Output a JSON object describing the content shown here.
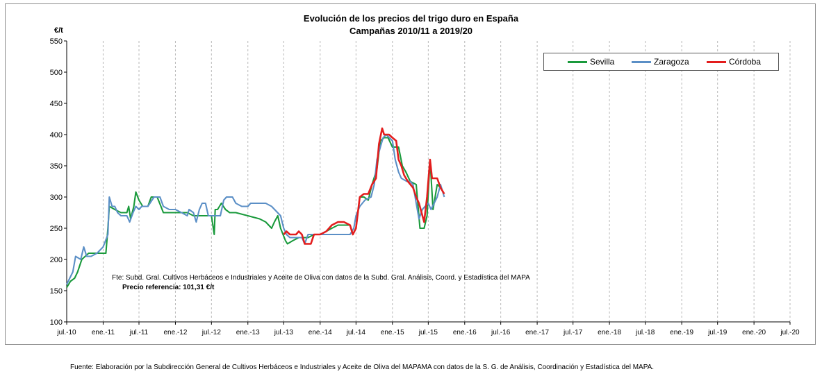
{
  "chart_data": {
    "type": "line",
    "title": "Evolución de los precios del trigo duro en España",
    "subtitle": "Campañas 2010/11 a 2019/20",
    "ylabel": "€/t",
    "ylim": [
      100,
      550
    ],
    "yticks": [
      100,
      150,
      200,
      250,
      300,
      350,
      400,
      450,
      500,
      550
    ],
    "x_tick_labels": [
      "jul.-10",
      "ene.-11",
      "jul.-11",
      "ene.-12",
      "jul.-12",
      "ene.-13",
      "jul.-13",
      "ene.-14",
      "jul.-14",
      "ene.-15",
      "jul.-15",
      "ene.-16",
      "jul.-16",
      "ene.-17",
      "jul.-17",
      "ene.-18",
      "jul.-18",
      "ene.-19",
      "jul.-19",
      "ene.-20",
      "jul.-20"
    ],
    "xlim": [
      "2010-07-01",
      "2020-07-01"
    ],
    "grid": "vertical dashed",
    "legend": "top-right",
    "series": [
      {
        "name": "Sevilla",
        "color": "#1a9a3c",
        "points": [
          [
            "2010-07-01",
            155
          ],
          [
            "2010-07-20",
            165
          ],
          [
            "2010-08-10",
            170
          ],
          [
            "2010-08-25",
            180
          ],
          [
            "2010-09-15",
            200
          ],
          [
            "2010-10-20",
            210
          ],
          [
            "2010-12-01",
            210
          ],
          [
            "2011-01-15",
            210
          ],
          [
            "2011-01-25",
            250
          ],
          [
            "2011-02-01",
            285
          ],
          [
            "2011-03-01",
            280
          ],
          [
            "2011-04-01",
            275
          ],
          [
            "2011-05-01",
            275
          ],
          [
            "2011-05-10",
            285
          ],
          [
            "2011-05-20",
            265
          ],
          [
            "2011-06-05",
            285
          ],
          [
            "2011-06-15",
            308
          ],
          [
            "2011-07-01",
            295
          ],
          [
            "2011-07-20",
            285
          ],
          [
            "2011-08-15",
            285
          ],
          [
            "2011-09-01",
            300
          ],
          [
            "2011-10-01",
            300
          ],
          [
            "2011-10-20",
            285
          ],
          [
            "2011-11-01",
            275
          ],
          [
            "2011-12-01",
            275
          ],
          [
            "2012-01-01",
            275
          ],
          [
            "2012-03-01",
            275
          ],
          [
            "2012-04-01",
            270
          ],
          [
            "2012-06-01",
            270
          ],
          [
            "2012-07-01",
            270
          ],
          [
            "2012-07-15",
            240
          ],
          [
            "2012-07-20",
            280
          ],
          [
            "2012-08-01",
            280
          ],
          [
            "2012-08-20",
            290
          ],
          [
            "2012-09-10",
            280
          ],
          [
            "2012-10-01",
            275
          ],
          [
            "2012-11-01",
            275
          ],
          [
            "2013-01-01",
            270
          ],
          [
            "2013-03-01",
            265
          ],
          [
            "2013-04-01",
            260
          ],
          [
            "2013-05-01",
            250
          ],
          [
            "2013-05-15",
            260
          ],
          [
            "2013-06-01",
            270
          ],
          [
            "2013-06-15",
            250
          ],
          [
            "2013-07-10",
            230
          ],
          [
            "2013-07-20",
            225
          ],
          [
            "2013-08-15",
            230
          ],
          [
            "2013-09-15",
            235
          ],
          [
            "2013-11-01",
            235
          ],
          [
            "2013-12-01",
            240
          ],
          [
            "2014-01-01",
            240
          ],
          [
            "2014-02-01",
            245
          ],
          [
            "2014-03-01",
            250
          ],
          [
            "2014-04-01",
            255
          ],
          [
            "2014-06-01",
            255
          ],
          [
            "2014-06-15",
            240
          ],
          [
            "2014-07-01",
            250
          ],
          [
            "2014-07-20",
            300
          ],
          [
            "2014-08-10",
            300
          ],
          [
            "2014-09-01",
            295
          ],
          [
            "2014-09-20",
            320
          ],
          [
            "2014-10-15",
            345
          ],
          [
            "2014-11-01",
            390
          ],
          [
            "2014-11-20",
            395
          ],
          [
            "2014-12-10",
            395
          ],
          [
            "2015-01-01",
            380
          ],
          [
            "2015-02-01",
            380
          ],
          [
            "2015-02-20",
            350
          ],
          [
            "2015-03-10",
            340
          ],
          [
            "2015-04-01",
            325
          ],
          [
            "2015-05-01",
            320
          ],
          [
            "2015-05-20",
            250
          ],
          [
            "2015-06-10",
            250
          ],
          [
            "2015-06-25",
            270
          ],
          [
            "2015-07-10",
            360
          ],
          [
            "2015-07-25",
            280
          ],
          [
            "2015-08-15",
            320
          ],
          [
            "2015-09-01",
            315
          ]
        ]
      },
      {
        "name": "Zaragoza",
        "color": "#5b8fc6",
        "points": [
          [
            "2010-07-01",
            160
          ],
          [
            "2010-08-01",
            180
          ],
          [
            "2010-08-15",
            205
          ],
          [
            "2010-09-10",
            200
          ],
          [
            "2010-09-25",
            220
          ],
          [
            "2010-10-10",
            205
          ],
          [
            "2010-11-01",
            205
          ],
          [
            "2010-12-01",
            210
          ],
          [
            "2011-01-01",
            220
          ],
          [
            "2011-01-25",
            240
          ],
          [
            "2011-02-01",
            300
          ],
          [
            "2011-02-15",
            285
          ],
          [
            "2011-03-01",
            285
          ],
          [
            "2011-03-15",
            275
          ],
          [
            "2011-04-01",
            270
          ],
          [
            "2011-05-01",
            270
          ],
          [
            "2011-05-15",
            260
          ],
          [
            "2011-06-01",
            275
          ],
          [
            "2011-06-15",
            285
          ],
          [
            "2011-07-01",
            280
          ],
          [
            "2011-07-15",
            285
          ],
          [
            "2011-08-15",
            285
          ],
          [
            "2011-09-15",
            300
          ],
          [
            "2011-10-15",
            300
          ],
          [
            "2011-11-01",
            285
          ],
          [
            "2011-12-01",
            280
          ],
          [
            "2012-01-01",
            280
          ],
          [
            "2012-02-01",
            275
          ],
          [
            "2012-03-01",
            270
          ],
          [
            "2012-03-10",
            280
          ],
          [
            "2012-04-01",
            275
          ],
          [
            "2012-04-15",
            260
          ],
          [
            "2012-05-01",
            280
          ],
          [
            "2012-05-15",
            290
          ],
          [
            "2012-06-01",
            290
          ],
          [
            "2012-06-15",
            270
          ],
          [
            "2012-07-01",
            270
          ],
          [
            "2012-08-01",
            270
          ],
          [
            "2012-08-15",
            270
          ],
          [
            "2012-09-01",
            295
          ],
          [
            "2012-09-15",
            300
          ],
          [
            "2012-10-15",
            300
          ],
          [
            "2012-11-01",
            290
          ],
          [
            "2012-12-01",
            285
          ],
          [
            "2013-01-01",
            285
          ],
          [
            "2013-01-15",
            290
          ],
          [
            "2013-04-01",
            290
          ],
          [
            "2013-05-01",
            285
          ],
          [
            "2013-06-15",
            270
          ],
          [
            "2013-07-01",
            250
          ],
          [
            "2013-07-15",
            240
          ],
          [
            "2013-08-01",
            235
          ],
          [
            "2013-09-01",
            235
          ],
          [
            "2013-10-01",
            235
          ],
          [
            "2013-10-15",
            225
          ],
          [
            "2013-11-01",
            240
          ],
          [
            "2013-12-01",
            240
          ],
          [
            "2014-01-01",
            240
          ],
          [
            "2014-06-01",
            240
          ],
          [
            "2014-06-20",
            250
          ],
          [
            "2014-07-01",
            270
          ],
          [
            "2014-07-20",
            285
          ],
          [
            "2014-08-15",
            295
          ],
          [
            "2014-09-15",
            300
          ],
          [
            "2014-10-01",
            320
          ],
          [
            "2014-10-15",
            360
          ],
          [
            "2014-11-01",
            380
          ],
          [
            "2014-11-15",
            395
          ],
          [
            "2014-12-01",
            400
          ],
          [
            "2015-01-01",
            390
          ],
          [
            "2015-01-15",
            360
          ],
          [
            "2015-02-01",
            340
          ],
          [
            "2015-02-15",
            330
          ],
          [
            "2015-03-15",
            325
          ],
          [
            "2015-04-01",
            325
          ],
          [
            "2015-04-15",
            320
          ],
          [
            "2015-05-01",
            290
          ],
          [
            "2015-05-15",
            265
          ],
          [
            "2015-06-01",
            280
          ],
          [
            "2015-06-15",
            285
          ],
          [
            "2015-07-01",
            290
          ],
          [
            "2015-07-15",
            280
          ],
          [
            "2015-08-15",
            300
          ],
          [
            "2015-09-01",
            320
          ],
          [
            "2015-09-20",
            300
          ]
        ]
      },
      {
        "name": "Córdoba",
        "color": "#e31d1d",
        "points": [
          [
            "2013-07-01",
            240
          ],
          [
            "2013-07-15",
            245
          ],
          [
            "2013-08-01",
            240
          ],
          [
            "2013-09-01",
            240
          ],
          [
            "2013-09-15",
            245
          ],
          [
            "2013-10-01",
            240
          ],
          [
            "2013-10-15",
            225
          ],
          [
            "2013-11-15",
            225
          ],
          [
            "2013-12-01",
            240
          ],
          [
            "2014-01-01",
            240
          ],
          [
            "2014-02-01",
            245
          ],
          [
            "2014-03-01",
            255
          ],
          [
            "2014-04-01",
            260
          ],
          [
            "2014-05-01",
            260
          ],
          [
            "2014-06-01",
            255
          ],
          [
            "2014-06-15",
            240
          ],
          [
            "2014-07-01",
            250
          ],
          [
            "2014-07-20",
            300
          ],
          [
            "2014-08-10",
            305
          ],
          [
            "2014-09-01",
            305
          ],
          [
            "2014-09-20",
            320
          ],
          [
            "2014-10-10",
            330
          ],
          [
            "2014-10-25",
            385
          ],
          [
            "2014-11-10",
            410
          ],
          [
            "2014-11-20",
            400
          ],
          [
            "2014-12-15",
            400
          ],
          [
            "2015-01-01",
            395
          ],
          [
            "2015-01-20",
            390
          ],
          [
            "2015-02-01",
            360
          ],
          [
            "2015-02-15",
            350
          ],
          [
            "2015-03-01",
            335
          ],
          [
            "2015-03-20",
            325
          ],
          [
            "2015-04-15",
            315
          ],
          [
            "2015-05-01",
            300
          ],
          [
            "2015-05-15",
            290
          ],
          [
            "2015-06-10",
            260
          ],
          [
            "2015-06-25",
            300
          ],
          [
            "2015-07-10",
            360
          ],
          [
            "2015-07-20",
            330
          ],
          [
            "2015-08-15",
            330
          ],
          [
            "2015-09-01",
            315
          ],
          [
            "2015-09-20",
            305
          ]
        ]
      }
    ]
  },
  "notes": {
    "source_inner": "Fte: Subd. Gral. Cultivos Herbáceos e Industriales y Aceite de Oliva con datos de la Subd. Gral. Análisis, Coord. y Estadística del MAPA",
    "reference_price": "Precio referencia: 101,31 €/t",
    "footer": "Fuente: Elaboración por la Subdirección General de Cultivos Herbáceos e Industriales y Aceite de Oliva del MAPAMA con datos de la S. G. de Análisis, Coordinación y Estadística del MAPA."
  }
}
